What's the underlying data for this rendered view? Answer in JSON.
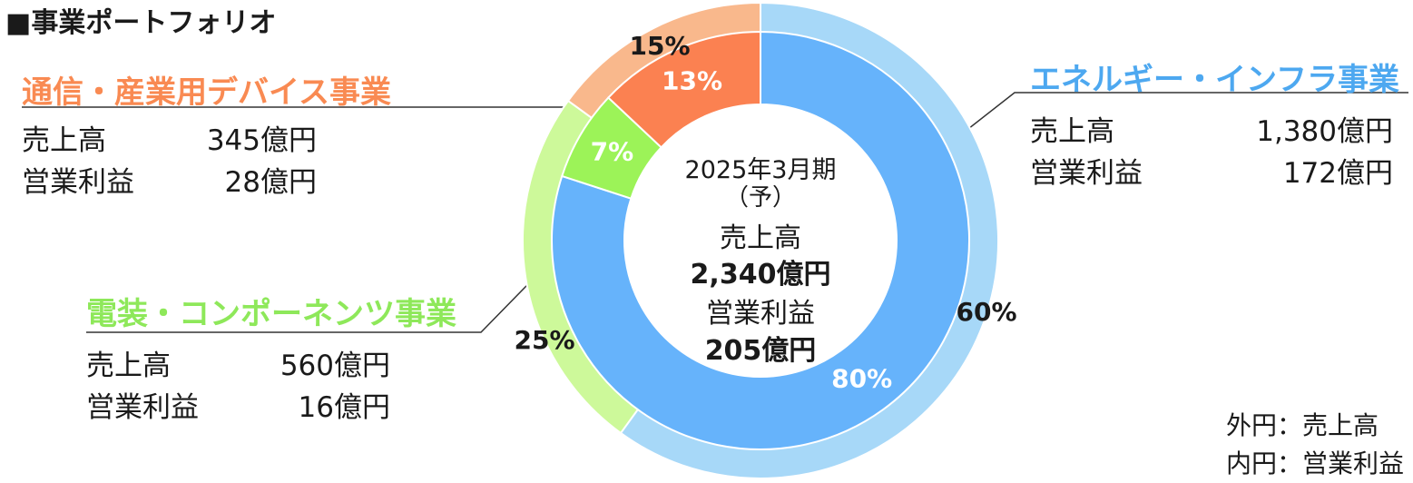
{
  "title": "■事業ポートフォリオ",
  "chart_data": {
    "type": "pie",
    "center": {
      "period": "2025年3月期",
      "forecast": "（予）",
      "sales_label": "売上高",
      "sales_value": "2,340億円",
      "profit_label": "営業利益",
      "profit_value": "205億円"
    },
    "outer_ring_metric": "売上高",
    "inner_ring_metric": "営業利益",
    "segments": [
      {
        "name": "エネルギー・インフラ事業",
        "sales_label": "売上高",
        "sales_value": "1,380億円",
        "profit_label": "営業利益",
        "profit_value": "172億円",
        "outer_pct": 60,
        "inner_pct": 80,
        "outer_pct_label": "60%",
        "inner_pct_label": "80%",
        "outer_color": "#a7d8f8",
        "inner_color": "#66b3fb",
        "label_color": "#4da8f0"
      },
      {
        "name": "電装・コンポーネンツ事業",
        "sales_label": "売上高",
        "sales_value": "560億円",
        "profit_label": "営業利益",
        "profit_value": "16億円",
        "outer_pct": 25,
        "inner_pct": 7,
        "outer_pct_label": "25%",
        "inner_pct_label": "7%",
        "outer_color": "#cdf99a",
        "inner_color": "#9cf358",
        "label_color": "#8ee85a"
      },
      {
        "name": "通信・産業用デバイス事業",
        "sales_label": "売上高",
        "sales_value": "345億円",
        "profit_label": "営業利益",
        "profit_value": "28億円",
        "outer_pct": 15,
        "inner_pct": 13,
        "outer_pct_label": "15%",
        "inner_pct_label": "13%",
        "outer_color": "#f9b88c",
        "inner_color": "#fb8151",
        "label_color": "#f98a52"
      }
    ]
  },
  "legend": {
    "outer": "外円：売上高",
    "inner": "内円：営業利益"
  }
}
